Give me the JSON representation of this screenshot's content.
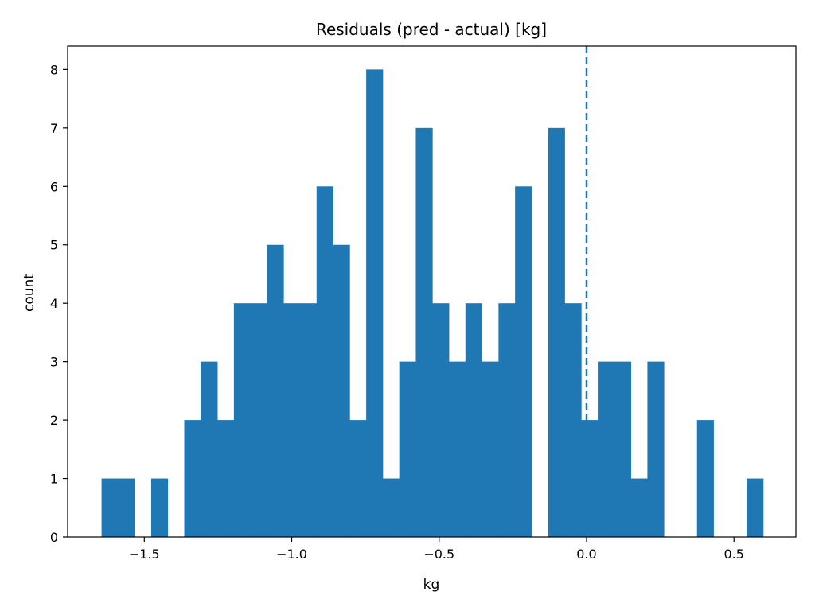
{
  "chart_data": {
    "type": "bar",
    "title": "Residuals (pred - actual) [kg]",
    "xlabel": "kg",
    "ylabel": "count",
    "xlim": [
      -1.76,
      0.71
    ],
    "ylim": [
      0,
      8.4
    ],
    "xticks": [
      {
        "value": -1.5,
        "label": "−1.5"
      },
      {
        "value": -1.0,
        "label": "−1.0"
      },
      {
        "value": -0.5,
        "label": "−0.5"
      },
      {
        "value": 0.0,
        "label": "0.0"
      },
      {
        "value": 0.5,
        "label": "0.5"
      }
    ],
    "yticks": [
      0,
      1,
      2,
      3,
      4,
      5,
      6,
      7,
      8
    ],
    "bin_start": -1.645,
    "bin_width": 0.0561,
    "counts": [
      1,
      1,
      0,
      1,
      0,
      2,
      3,
      2,
      4,
      4,
      5,
      4,
      4,
      6,
      5,
      2,
      8,
      1,
      3,
      7,
      4,
      3,
      4,
      3,
      4,
      6,
      0,
      7,
      4,
      2,
      3,
      3,
      1,
      3,
      0,
      0,
      2,
      0,
      0,
      1
    ],
    "reference_line": {
      "x": 0.0,
      "style": "dashed"
    },
    "grid": false,
    "colors": {
      "bar": "#1f77b4",
      "reference_line": "#1f77b4"
    }
  }
}
